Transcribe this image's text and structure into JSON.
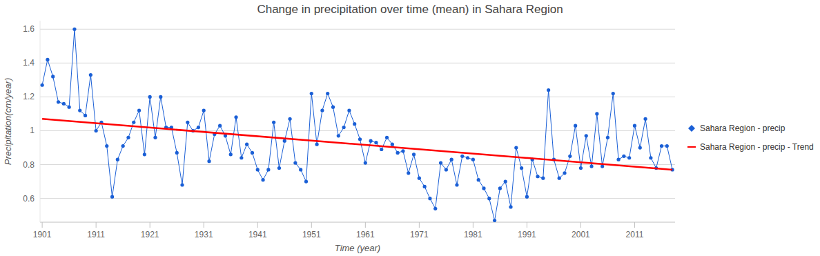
{
  "chart_data": {
    "type": "line",
    "title": "Change in precipitation over time (mean) in Sahara Region",
    "x_label": "Time (year)",
    "y_label": "Precipitation(cm/year)",
    "x": [
      1901,
      1902,
      1903,
      1904,
      1905,
      1906,
      1907,
      1908,
      1909,
      1910,
      1911,
      1912,
      1913,
      1914,
      1915,
      1916,
      1917,
      1918,
      1919,
      1920,
      1921,
      1922,
      1923,
      1924,
      1925,
      1926,
      1927,
      1928,
      1929,
      1930,
      1931,
      1932,
      1933,
      1934,
      1935,
      1936,
      1937,
      1938,
      1939,
      1940,
      1941,
      1942,
      1943,
      1944,
      1945,
      1946,
      1947,
      1948,
      1949,
      1950,
      1951,
      1952,
      1953,
      1954,
      1955,
      1956,
      1957,
      1958,
      1959,
      1960,
      1961,
      1962,
      1963,
      1964,
      1965,
      1966,
      1967,
      1968,
      1969,
      1970,
      1971,
      1972,
      1973,
      1974,
      1975,
      1976,
      1977,
      1978,
      1979,
      1980,
      1981,
      1982,
      1983,
      1984,
      1985,
      1986,
      1987,
      1988,
      1989,
      1990,
      1991,
      1992,
      1993,
      1994,
      1995,
      1996,
      1997,
      1998,
      1999,
      2000,
      2001,
      2002,
      2003,
      2004,
      2005,
      2006,
      2007,
      2008,
      2009,
      2010,
      2011,
      2012,
      2013,
      2014,
      2015,
      2016,
      2017,
      2018
    ],
    "series": [
      {
        "name": "Sahara Region - precip",
        "color": "#1a5fd6",
        "marker": "circle",
        "line_style": "solid",
        "values": [
          1.27,
          1.42,
          1.32,
          1.17,
          1.16,
          1.14,
          1.6,
          1.12,
          1.09,
          1.33,
          1.0,
          1.05,
          0.91,
          0.61,
          0.83,
          0.91,
          0.96,
          1.05,
          1.12,
          0.86,
          1.2,
          0.96,
          1.2,
          1.02,
          1.02,
          0.87,
          0.68,
          1.05,
          1.0,
          1.02,
          1.12,
          0.82,
          0.98,
          1.03,
          0.97,
          0.86,
          1.08,
          0.84,
          0.92,
          0.87,
          0.77,
          0.71,
          0.77,
          1.05,
          0.78,
          0.94,
          1.07,
          0.81,
          0.77,
          0.7,
          1.22,
          0.92,
          1.12,
          1.22,
          1.14,
          0.97,
          1.02,
          1.12,
          1.04,
          0.95,
          0.81,
          0.94,
          0.93,
          0.89,
          0.96,
          0.92,
          0.87,
          0.88,
          0.75,
          0.86,
          0.72,
          0.67,
          0.6,
          0.54,
          0.81,
          0.77,
          0.83,
          0.68,
          0.85,
          0.84,
          0.83,
          0.71,
          0.66,
          0.6,
          0.47,
          0.66,
          0.7,
          0.55,
          0.9,
          0.78,
          0.61,
          0.83,
          0.73,
          0.72,
          1.24,
          0.83,
          0.72,
          0.75,
          0.85,
          1.03,
          0.78,
          0.97,
          0.79,
          1.1,
          0.79,
          0.96,
          1.22,
          0.83,
          0.85,
          0.84,
          1.03,
          0.9,
          1.07,
          0.84,
          0.78,
          0.91,
          0.91,
          0.77
        ]
      },
      {
        "name": "Sahara Region - precip - Trend",
        "color": "#ff0000",
        "marker": "none",
        "line_style": "solid",
        "x": [
          1901,
          2018
        ],
        "values": [
          1.07,
          0.77
        ]
      }
    ],
    "xlim": [
      1900.6,
      2018.5
    ],
    "ylim": [
      0.46,
      1.65
    ],
    "xticks": [
      1901,
      1911,
      1921,
      1931,
      1941,
      1951,
      1961,
      1971,
      1981,
      1991,
      2001,
      2011
    ],
    "yticks": [
      0.6,
      0.8,
      1,
      1.2,
      1.4,
      1.6
    ],
    "grid": true,
    "legend": "right"
  }
}
